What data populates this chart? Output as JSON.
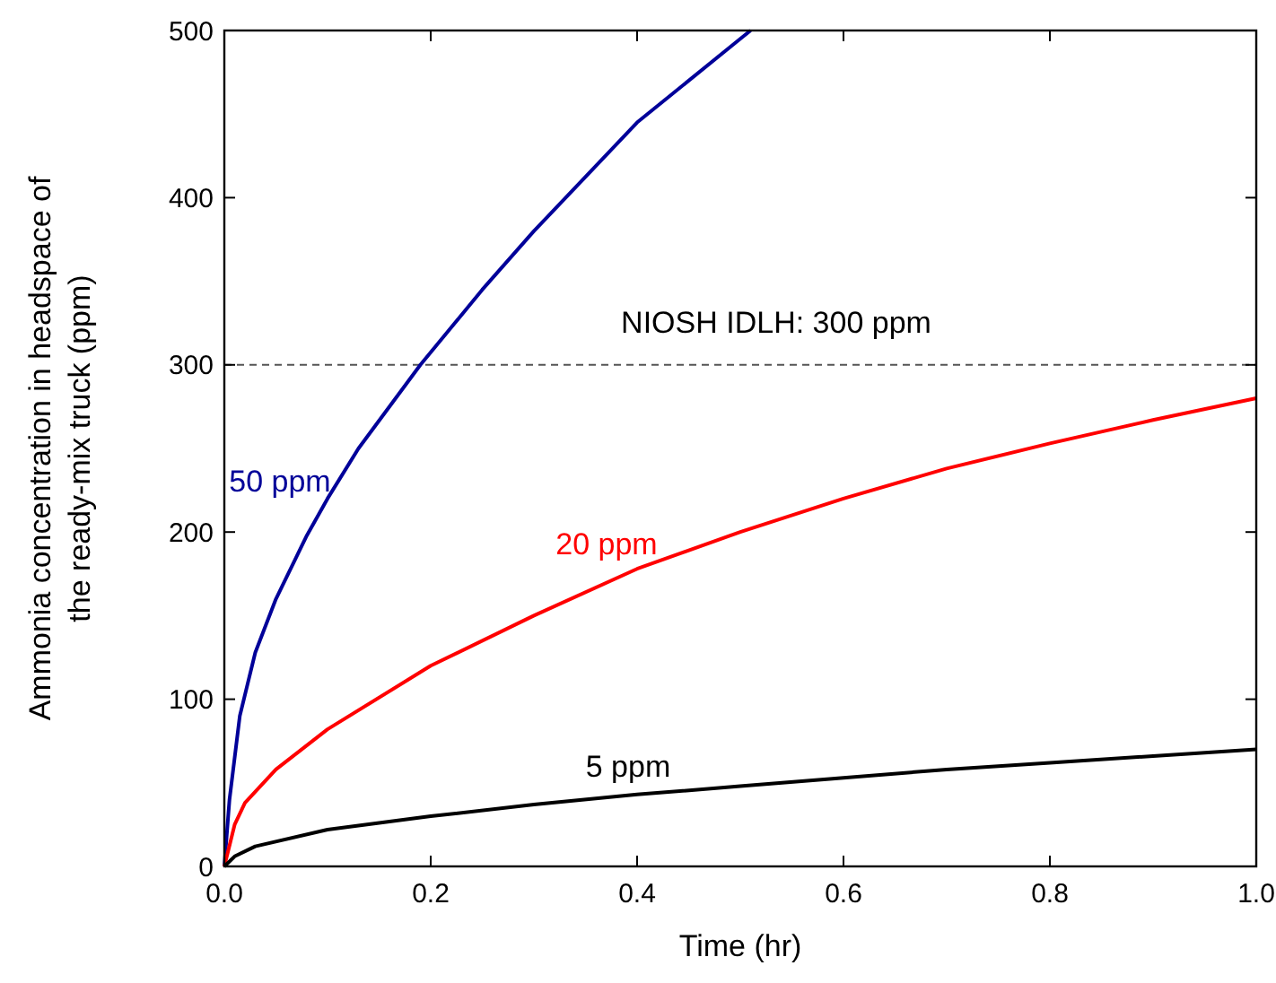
{
  "chart_data": {
    "type": "line",
    "xlabel": "Time (hr)",
    "ylabel": "Ammonia concentration in headspace of\nthe ready-mix truck (ppm)",
    "xlim": [
      0,
      1
    ],
    "ylim": [
      0,
      500
    ],
    "xticks": [
      {
        "value": 0,
        "label": "0.0"
      },
      {
        "value": 0.2,
        "label": "0.2"
      },
      {
        "value": 0.4,
        "label": "0.4"
      },
      {
        "value": 0.6,
        "label": "0.6"
      },
      {
        "value": 0.8,
        "label": "0.8"
      },
      {
        "value": 1,
        "label": "1.0"
      }
    ],
    "yticks": [
      0,
      100,
      200,
      300,
      400,
      500
    ],
    "grid": false,
    "line_style": "solid",
    "marker": "none",
    "series": [
      {
        "name": "50 ppm",
        "color": "#000099",
        "x": [
          0,
          0.005,
          0.015,
          0.03,
          0.05,
          0.08,
          0.1,
          0.13,
          0.19,
          0.25,
          0.3,
          0.4,
          0.5,
          0.51
        ],
        "values": [
          0,
          40,
          90,
          128,
          160,
          198,
          220,
          250,
          300,
          345,
          380,
          445,
          495,
          500
        ]
      },
      {
        "name": "20 ppm",
        "color": "#ff0000",
        "x": [
          0,
          0.01,
          0.02,
          0.05,
          0.1,
          0.2,
          0.3,
          0.4,
          0.5,
          0.6,
          0.7,
          0.8,
          0.9,
          1.0
        ],
        "values": [
          0,
          25,
          38,
          58,
          82,
          120,
          150,
          178,
          200,
          220,
          238,
          253,
          267,
          280
        ]
      },
      {
        "name": "5 ppm",
        "color": "#000000",
        "x": [
          0,
          0.01,
          0.03,
          0.1,
          0.2,
          0.3,
          0.4,
          0.5,
          0.6,
          0.7,
          0.8,
          0.9,
          1.0
        ],
        "values": [
          0,
          6,
          12,
          22,
          30,
          37,
          43,
          48,
          53,
          58,
          62,
          66,
          70
        ]
      }
    ],
    "ref_lines": [
      {
        "axis": "y",
        "value": 300,
        "label": "NIOSH IDLH: 300 ppm",
        "color": "#555555",
        "line_style": "dashed"
      }
    ]
  }
}
